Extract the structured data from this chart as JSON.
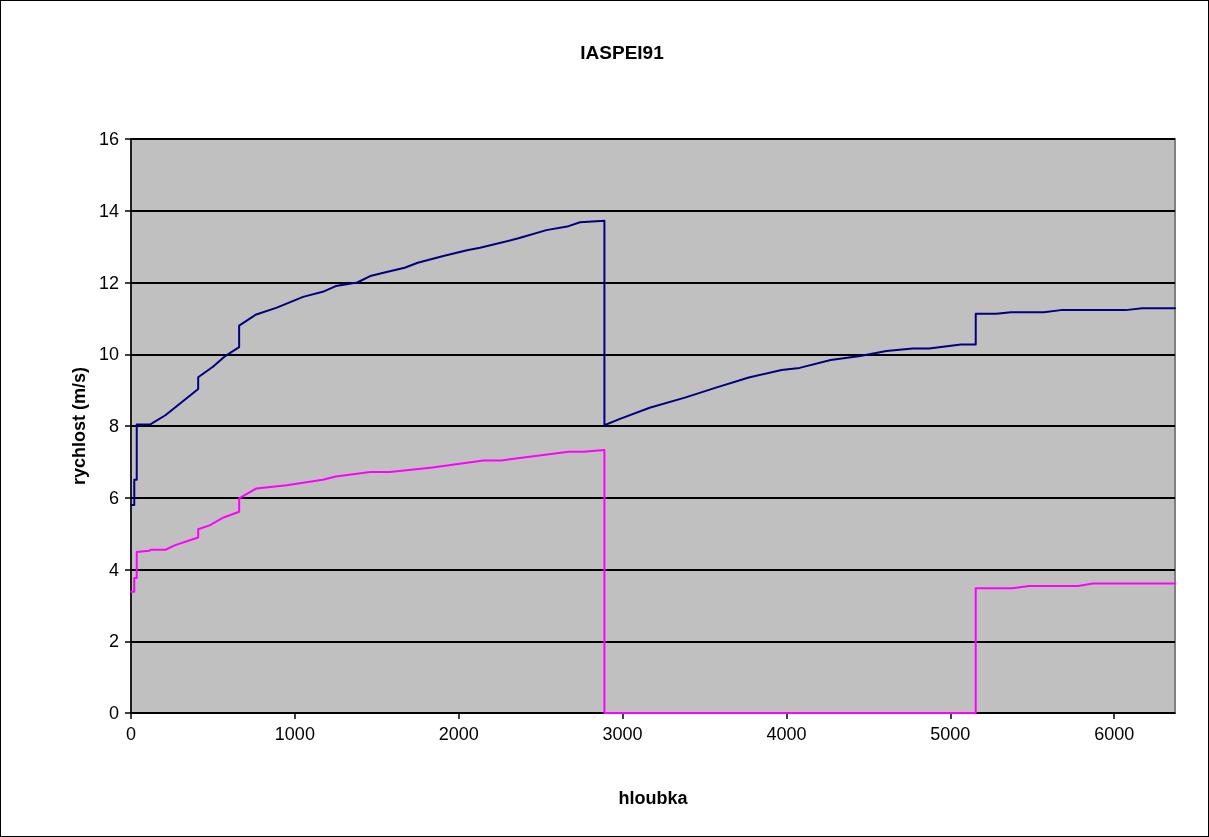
{
  "chart_data": {
    "type": "line",
    "title": "IASPEI91",
    "xlabel": "hloubka",
    "ylabel": "rychlost (m/s)",
    "xlim": [
      0,
      6371
    ],
    "xticks": [
      0,
      1000,
      2000,
      3000,
      4000,
      5000,
      6000
    ],
    "ylim": [
      0,
      16
    ],
    "yticks": [
      0,
      2,
      4,
      6,
      8,
      10,
      12,
      14,
      16
    ],
    "grid": "y",
    "marker": "none",
    "line_style": "solid",
    "series": [
      {
        "color": "#000080",
        "x": [
          0,
          20,
          20,
          35,
          35,
          120,
          210,
          410,
          410,
          500,
          575,
          660,
          660,
          760,
          890,
          1050,
          1170,
          1250,
          1380,
          1460,
          1560,
          1670,
          1750,
          1900,
          2050,
          2130,
          2250,
          2370,
          2535,
          2670,
          2740,
          2889,
          2889,
          2980,
          3165,
          3380,
          3570,
          3770,
          3970,
          4080,
          4270,
          4450,
          4610,
          4770,
          4870,
          5065,
          5155,
          5155,
          5280,
          5370,
          5570,
          5675,
          6070,
          6170,
          6371
        ],
        "values": [
          5.8,
          5.8,
          6.5,
          6.5,
          8.04,
          8.05,
          8.3,
          9.03,
          9.36,
          9.65,
          9.95,
          10.2,
          10.8,
          11.1,
          11.3,
          11.6,
          11.74,
          11.9,
          12.0,
          12.18,
          12.29,
          12.41,
          12.55,
          12.73,
          12.9,
          12.97,
          13.1,
          13.24,
          13.46,
          13.57,
          13.68,
          13.72,
          8.02,
          8.19,
          8.51,
          8.79,
          9.07,
          9.35,
          9.56,
          9.62,
          9.84,
          9.95,
          10.09,
          10.16,
          10.16,
          10.27,
          10.27,
          11.13,
          11.13,
          11.17,
          11.17,
          11.23,
          11.23,
          11.28,
          11.28
        ]
      },
      {
        "color": "#ff00ff",
        "x": [
          0,
          20,
          20,
          35,
          35,
          110,
          120,
          210,
          270,
          350,
          410,
          410,
          480,
          565,
          660,
          660,
          765,
          950,
          1170,
          1250,
          1460,
          1580,
          1840,
          2150,
          2260,
          2670,
          2760,
          2889,
          2889,
          5155,
          5155,
          5380,
          5480,
          5780,
          5870,
          6371
        ],
        "values": [
          3.38,
          3.38,
          3.76,
          3.76,
          4.49,
          4.52,
          4.55,
          4.55,
          4.68,
          4.8,
          4.89,
          5.12,
          5.23,
          5.45,
          5.61,
          5.98,
          6.26,
          6.35,
          6.5,
          6.59,
          6.72,
          6.72,
          6.84,
          7.04,
          7.04,
          7.28,
          7.28,
          7.33,
          0,
          0,
          3.48,
          3.48,
          3.54,
          3.54,
          3.61,
          3.61
        ]
      }
    ]
  }
}
